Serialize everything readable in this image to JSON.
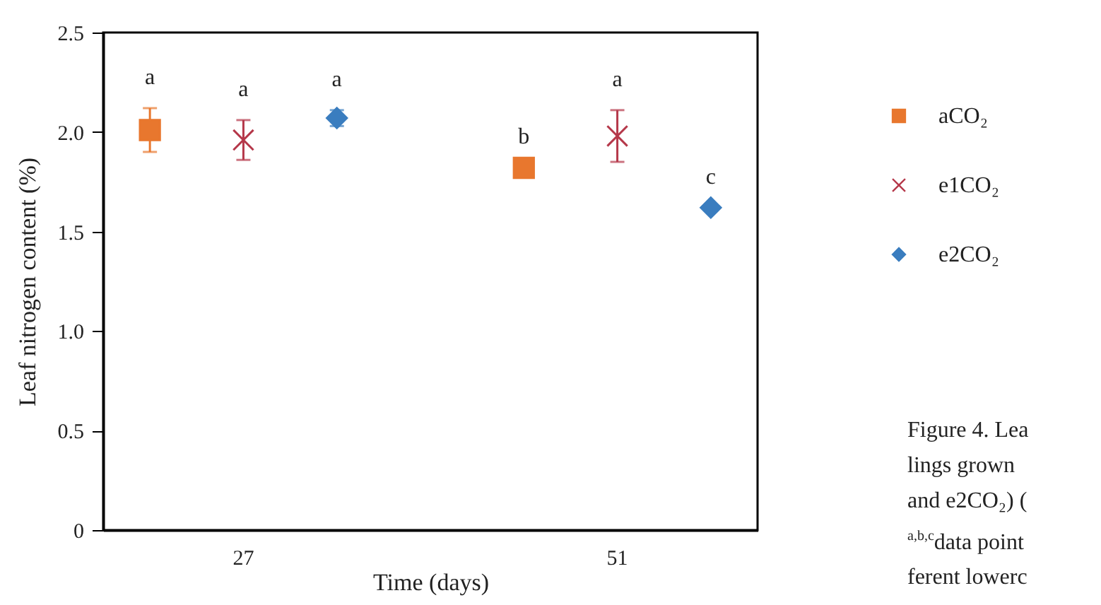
{
  "chart_data": {
    "type": "scatter",
    "xlabel": "Time (days)",
    "ylabel": "Leaf nitrogen content (%)",
    "categories": [
      "27",
      "51"
    ],
    "series": [
      {
        "name": "aCO₂",
        "color": "#e8772e",
        "marker": "square",
        "values": [
          2.01,
          1.82
        ],
        "errors": [
          0.11,
          null
        ],
        "value_labels": [
          "a",
          "b"
        ]
      },
      {
        "name": "e1CO₂",
        "color": "#b5384a",
        "marker": "cross",
        "values": [
          1.96,
          1.98
        ],
        "errors": [
          0.1,
          0.13
        ],
        "value_labels": [
          "a",
          "a"
        ]
      },
      {
        "name": "e2CO₂",
        "color": "#3a7dbf",
        "marker": "diamond",
        "values": [
          2.07,
          1.62
        ],
        "errors": [
          0.04,
          null
        ],
        "value_labels": [
          "a",
          "c"
        ]
      }
    ],
    "ylim": [
      0,
      2.5
    ],
    "yticks": [
      {
        "value": 0,
        "label": "0"
      },
      0.5,
      {
        "value": 1,
        "label": "1.0"
      },
      1.5,
      {
        "value": 2,
        "label": "2.0"
      },
      2.5
    ],
    "grid": false,
    "legend": "top right",
    "annotations": [
      "Figure 4. Lea",
      "lings grown",
      "and e2CO₂) (",
      "$^{a,b,c}$data point",
      "ferent lowerc"
    ]
  }
}
